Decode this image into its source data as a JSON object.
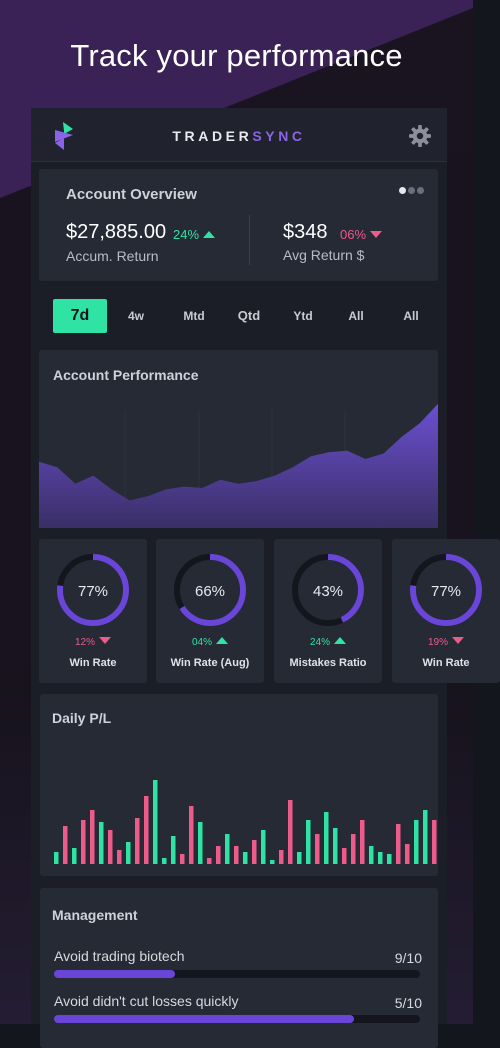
{
  "headline": "Track your performance",
  "brand": {
    "part1": "TRADER",
    "part2": "SYNC"
  },
  "overview": {
    "title": "Account Overview",
    "accum_value": "$27,885.00",
    "accum_change": "24%",
    "accum_label": "Accum. Return",
    "avg_value": "$348",
    "avg_change": "06%",
    "avg_label": "Avg Return $",
    "pages": 3,
    "active_page": 0
  },
  "tabs": [
    {
      "label": "7d",
      "active": true
    },
    {
      "label": "4w",
      "active": false
    },
    {
      "label": "Mtd",
      "active": false
    },
    {
      "label": "Qtd",
      "active": false
    },
    {
      "label": "Ytd",
      "active": false
    },
    {
      "label": "All",
      "active": false
    },
    {
      "label": "All",
      "active": false
    }
  ],
  "performance": {
    "title": "Account Performance",
    "values": [
      48,
      44,
      32,
      38,
      28,
      20,
      23,
      28,
      30,
      29,
      35,
      32,
      34,
      38,
      44,
      52,
      55,
      56,
      50,
      54,
      66,
      76,
      90
    ]
  },
  "gauges": [
    {
      "value": 77,
      "value_text": "77%",
      "change": "12%",
      "direction": "down",
      "label": "Win Rate"
    },
    {
      "value": 66,
      "value_text": "66%",
      "change": "04%",
      "direction": "up",
      "label": "Win Rate (Aug)"
    },
    {
      "value": 43,
      "value_text": "43%",
      "change": "24%",
      "direction": "up",
      "label": "Mistakes Ratio"
    },
    {
      "value": 77,
      "value_text": "77%",
      "change": "19%",
      "direction": "down",
      "label": "Win Rate"
    }
  ],
  "daily_pl": {
    "title": "Daily P/L",
    "bars": [
      {
        "v": 12,
        "c": "g"
      },
      {
        "v": 38,
        "c": "r"
      },
      {
        "v": 16,
        "c": "g"
      },
      {
        "v": 44,
        "c": "r"
      },
      {
        "v": 54,
        "c": "r"
      },
      {
        "v": 42,
        "c": "g"
      },
      {
        "v": 34,
        "c": "r"
      },
      {
        "v": 14,
        "c": "r"
      },
      {
        "v": 22,
        "c": "g"
      },
      {
        "v": 46,
        "c": "r"
      },
      {
        "v": 68,
        "c": "r"
      },
      {
        "v": 84,
        "c": "g"
      },
      {
        "v": 6,
        "c": "g"
      },
      {
        "v": 28,
        "c": "g"
      },
      {
        "v": 10,
        "c": "r"
      },
      {
        "v": 58,
        "c": "r"
      },
      {
        "v": 42,
        "c": "g"
      },
      {
        "v": 6,
        "c": "r"
      },
      {
        "v": 18,
        "c": "r"
      },
      {
        "v": 30,
        "c": "g"
      },
      {
        "v": 18,
        "c": "r"
      },
      {
        "v": 12,
        "c": "g"
      },
      {
        "v": 24,
        "c": "r"
      },
      {
        "v": 34,
        "c": "g"
      },
      {
        "v": 4,
        "c": "g"
      },
      {
        "v": 14,
        "c": "r"
      },
      {
        "v": 64,
        "c": "r"
      },
      {
        "v": 12,
        "c": "g"
      },
      {
        "v": 44,
        "c": "g"
      },
      {
        "v": 30,
        "c": "r"
      },
      {
        "v": 52,
        "c": "g"
      },
      {
        "v": 36,
        "c": "g"
      },
      {
        "v": 16,
        "c": "r"
      },
      {
        "v": 30,
        "c": "r"
      },
      {
        "v": 44,
        "c": "r"
      },
      {
        "v": 18,
        "c": "g"
      },
      {
        "v": 12,
        "c": "g"
      },
      {
        "v": 10,
        "c": "g"
      },
      {
        "v": 40,
        "c": "r"
      },
      {
        "v": 20,
        "c": "r"
      },
      {
        "v": 44,
        "c": "g"
      },
      {
        "v": 54,
        "c": "g"
      },
      {
        "v": 44,
        "c": "r"
      }
    ]
  },
  "management": {
    "title": "Management",
    "items": [
      {
        "label": "Avoid trading biotech",
        "score": "9/10",
        "fill": 0.33
      },
      {
        "label": "Avoid didn't cut losses quickly",
        "score": "5/10",
        "fill": 0.82
      }
    ]
  },
  "colors": {
    "accent_green": "#2ee3a3",
    "accent_red": "#ec5b8a",
    "accent_purple": "#6a46d8"
  }
}
